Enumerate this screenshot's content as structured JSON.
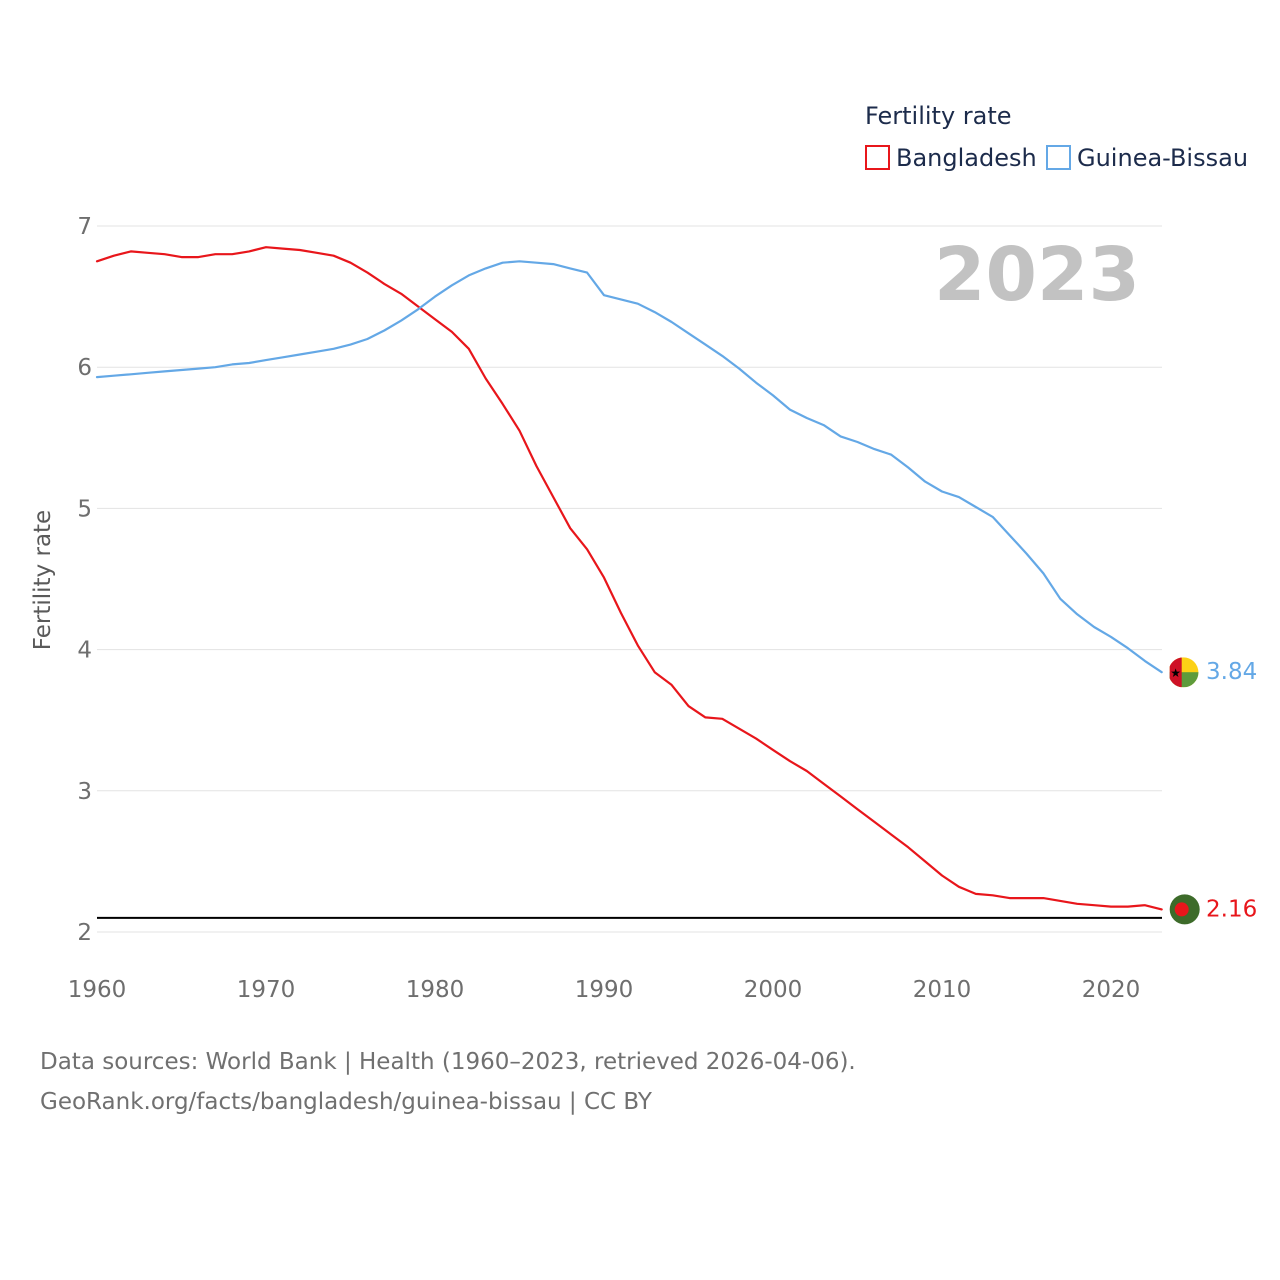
{
  "chart_data": {
    "type": "line",
    "ylabel": "Fertility rate",
    "xlabel": "",
    "legend_title": "Fertility rate",
    "legend_position": "top-right",
    "current_year": "2023",
    "xlim": [
      1960,
      2023
    ],
    "ylim": [
      2,
      7
    ],
    "x_ticks": [
      "1960",
      "1970",
      "1980",
      "1990",
      "2000",
      "2010",
      "2020"
    ],
    "y_ticks": [
      "2",
      "3",
      "4",
      "5",
      "6",
      "7"
    ],
    "grid": true,
    "reference_line": 2.1,
    "x": [
      1960,
      1961,
      1962,
      1963,
      1964,
      1965,
      1966,
      1967,
      1968,
      1969,
      1970,
      1971,
      1972,
      1973,
      1974,
      1975,
      1976,
      1977,
      1978,
      1979,
      1980,
      1981,
      1982,
      1983,
      1984,
      1985,
      1986,
      1987,
      1988,
      1989,
      1990,
      1991,
      1992,
      1993,
      1994,
      1995,
      1996,
      1997,
      1998,
      1999,
      2000,
      2001,
      2002,
      2003,
      2004,
      2005,
      2006,
      2007,
      2008,
      2009,
      2010,
      2011,
      2012,
      2013,
      2014,
      2015,
      2016,
      2017,
      2018,
      2019,
      2020,
      2021,
      2022,
      2023
    ],
    "series": [
      {
        "name": "Bangladesh",
        "color": "#e8161b",
        "end_label": "2.16",
        "flag_icon": "bangladesh-flag-icon",
        "values": [
          6.75,
          6.79,
          6.82,
          6.81,
          6.8,
          6.78,
          6.78,
          6.8,
          6.8,
          6.82,
          6.85,
          6.84,
          6.83,
          6.81,
          6.79,
          6.74,
          6.67,
          6.59,
          6.52,
          6.43,
          6.34,
          6.25,
          6.13,
          5.92,
          5.74,
          5.55,
          5.3,
          5.08,
          4.86,
          4.71,
          4.51,
          4.26,
          4.03,
          3.84,
          3.75,
          3.6,
          3.52,
          3.51,
          3.44,
          3.37,
          3.29,
          3.21,
          3.14,
          3.05,
          2.96,
          2.87,
          2.78,
          2.69,
          2.6,
          2.5,
          2.4,
          2.32,
          2.27,
          2.26,
          2.24,
          2.24,
          2.24,
          2.22,
          2.2,
          2.19,
          2.18,
          2.18,
          2.19,
          2.16
        ]
      },
      {
        "name": "Guinea-Bissau",
        "color": "#64a8e6",
        "end_label": "3.84",
        "flag_icon": "guinea-bissau-flag-icon",
        "values": [
          5.93,
          5.94,
          5.95,
          5.96,
          5.97,
          5.98,
          5.99,
          6.0,
          6.02,
          6.03,
          6.05,
          6.07,
          6.09,
          6.11,
          6.13,
          6.16,
          6.2,
          6.26,
          6.33,
          6.41,
          6.5,
          6.58,
          6.65,
          6.7,
          6.74,
          6.75,
          6.74,
          6.73,
          6.7,
          6.67,
          6.51,
          6.48,
          6.45,
          6.39,
          6.32,
          6.24,
          6.16,
          6.08,
          5.99,
          5.89,
          5.8,
          5.7,
          5.64,
          5.59,
          5.51,
          5.47,
          5.42,
          5.38,
          5.29,
          5.19,
          5.12,
          5.08,
          5.01,
          4.94,
          4.81,
          4.68,
          4.54,
          4.36,
          4.25,
          4.16,
          4.09,
          4.01,
          3.92,
          3.84
        ]
      }
    ]
  },
  "footer": {
    "sources": "Data sources: World Bank | Health (1960–2023, retrieved 2026-04-06).",
    "credit": "GeoRank.org/facts/bangladesh/guinea-bissau | CC BY"
  }
}
